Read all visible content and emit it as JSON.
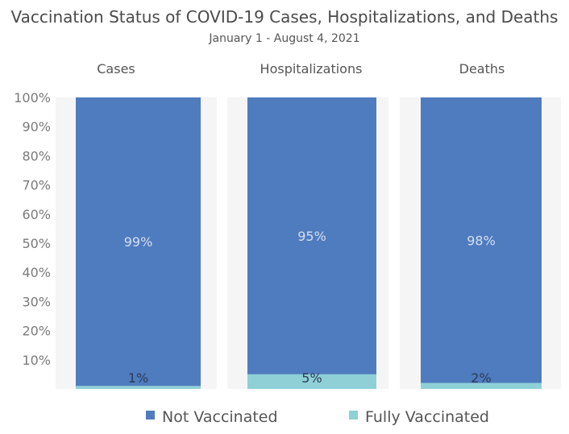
{
  "chart_data": {
    "type": "bar",
    "stacked": true,
    "title": "Vaccination Status of COVID-19 Cases, Hospitalizations, and Deaths",
    "subtitle": "January 1 - August 4, 2021",
    "categories": [
      "Cases",
      "Hospitalizations",
      "Deaths"
    ],
    "series": [
      {
        "name": "Fully Vaccinated",
        "values": [
          1,
          5,
          2
        ],
        "labels": [
          "1%",
          "5%",
          "2%"
        ],
        "color": "#8ed0d6"
      },
      {
        "name": "Not Vaccinated",
        "values": [
          99,
          95,
          98
        ],
        "labels": [
          "99%",
          "95%",
          "98%"
        ],
        "color": "#4f7cbf"
      }
    ],
    "y_ticks": [
      "10%",
      "20%",
      "30%",
      "40%",
      "50%",
      "60%",
      "70%",
      "80%",
      "90%",
      "100%"
    ],
    "ylim": [
      0,
      100
    ],
    "grid": false,
    "legend": {
      "position": "bottom",
      "items": [
        {
          "label": "Not Vaccinated",
          "color": "#4f7cbf"
        },
        {
          "label": "Fully Vaccinated",
          "color": "#8ed0d6"
        }
      ]
    }
  }
}
